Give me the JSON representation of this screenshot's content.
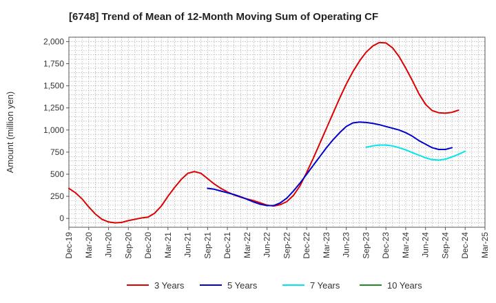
{
  "chart_data": {
    "type": "line",
    "title": "[6748]  Trend of Mean of 12-Month Moving Sum of Operating CF",
    "xlabel": "",
    "ylabel": "Amount (million yen)",
    "ylim": [
      -100,
      2050
    ],
    "yticks": [
      0,
      250,
      500,
      750,
      1000,
      1250,
      1500,
      1750,
      2000
    ],
    "ytick_labels": [
      "0",
      "250",
      "500",
      "750",
      "1,000",
      "1,250",
      "1,500",
      "1,750",
      "2,000"
    ],
    "xticks": [
      "Dec-19",
      "Mar-20",
      "Jun-20",
      "Sep-20",
      "Dec-20",
      "Mar-21",
      "Jun-21",
      "Sep-21",
      "Dec-21",
      "Mar-22",
      "Jun-22",
      "Sep-22",
      "Dec-22",
      "Mar-23",
      "Jun-23",
      "Sep-23",
      "Dec-23",
      "Mar-24",
      "Jun-24",
      "Sep-24",
      "Dec-24",
      "Mar-25"
    ],
    "grid": true,
    "legend_position": "bottom",
    "series": [
      {
        "name": "3 Years",
        "color": "#dd0000",
        "start_index": 0,
        "values": [
          340,
          290,
          220,
          130,
          50,
          -10,
          -40,
          -50,
          -45,
          -25,
          -10,
          5,
          15,
          60,
          140,
          250,
          350,
          440,
          510,
          530,
          510,
          450,
          390,
          340,
          300,
          265,
          240,
          220,
          200,
          175,
          150,
          140,
          155,
          190,
          260,
          370,
          520,
          680,
          850,
          1020,
          1190,
          1360,
          1520,
          1660,
          1780,
          1880,
          1950,
          1990,
          1985,
          1930,
          1830,
          1700,
          1560,
          1410,
          1290,
          1220,
          1195,
          1190,
          1200,
          1225
        ]
      },
      {
        "name": "5 Years",
        "color": "#0000cc",
        "start_index": 21,
        "values": [
          340,
          330,
          310,
          290,
          270,
          245,
          215,
          185,
          160,
          145,
          145,
          175,
          230,
          310,
          400,
          500,
          600,
          700,
          800,
          890,
          970,
          1040,
          1080,
          1090,
          1085,
          1075,
          1060,
          1040,
          1020,
          1000,
          970,
          930,
          880,
          840,
          800,
          780,
          780,
          800
        ]
      },
      {
        "name": "7 Years",
        "color": "#00e5ee",
        "start_index": 45,
        "values": [
          805,
          820,
          830,
          830,
          820,
          800,
          775,
          745,
          715,
          685,
          665,
          660,
          670,
          695,
          725,
          760
        ]
      },
      {
        "name": "10 Years",
        "color": "#228822",
        "start_index": 0,
        "values": []
      }
    ]
  }
}
